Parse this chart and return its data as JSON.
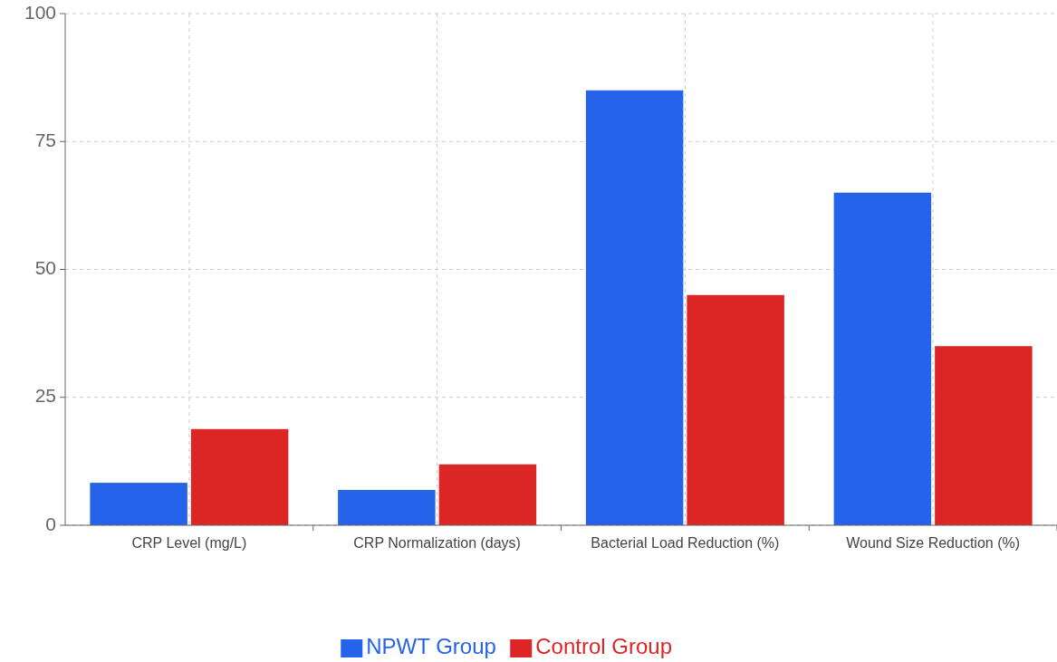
{
  "chart_data": {
    "type": "bar",
    "categories": [
      "CRP Level (mg/L)",
      "CRP Normalization (days)",
      "Bacterial Load Reduction (%)",
      "Wound Size Reduction (%)"
    ],
    "series": [
      {
        "name": "NPWT Group",
        "color": "#2563eb",
        "values": [
          8.3,
          6.9,
          85,
          65
        ]
      },
      {
        "name": "Control Group",
        "color": "#dc2626",
        "values": [
          18.8,
          11.9,
          45,
          35
        ]
      }
    ],
    "ylim": [
      0,
      100
    ],
    "yticks": [
      0,
      25,
      50,
      75,
      100
    ],
    "grid": true,
    "legend": "bottom"
  }
}
